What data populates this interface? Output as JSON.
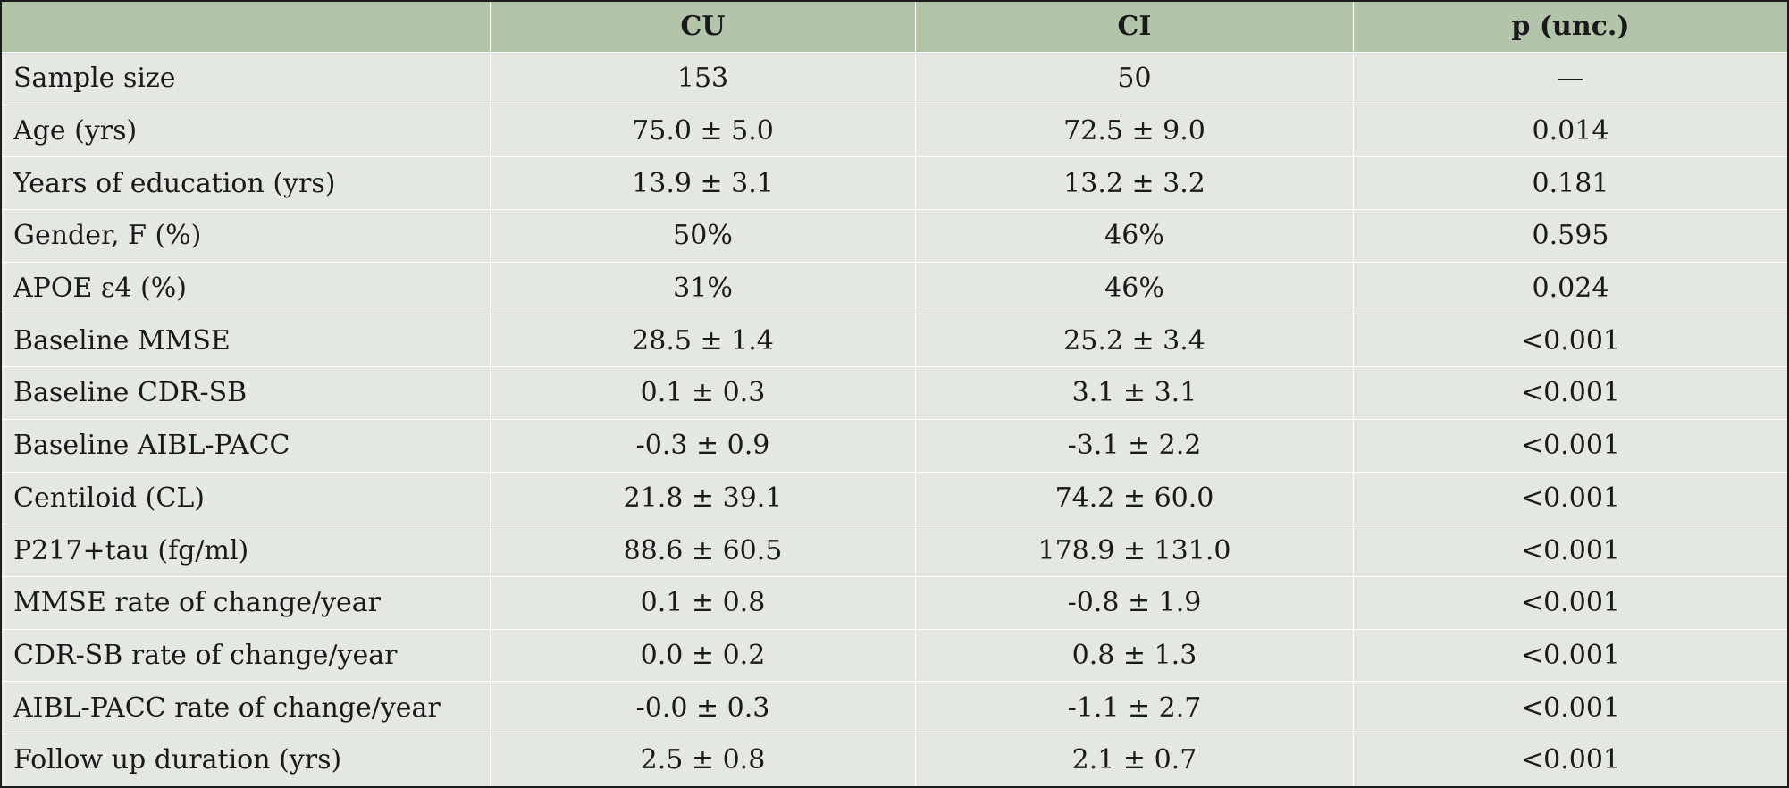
{
  "table": {
    "headers": [
      "",
      "CU",
      "CI",
      "p (unc.)"
    ],
    "rows": [
      [
        "Sample size",
        "153",
        "50",
        "—"
      ],
      [
        "Age (yrs)",
        "75.0 ± 5.0",
        "72.5 ± 9.0",
        "0.014"
      ],
      [
        "Years of education (yrs)",
        "13.9 ± 3.1",
        "13.2 ± 3.2",
        "0.181"
      ],
      [
        "Gender, F (%)",
        "50%",
        "46%",
        "0.595"
      ],
      [
        "APOE ε4 (%)",
        "31%",
        "46%",
        "0.024"
      ],
      [
        "Baseline MMSE",
        "28.5 ± 1.4",
        "25.2 ± 3.4",
        "<0.001"
      ],
      [
        "Baseline CDR-SB",
        "0.1 ± 0.3",
        "3.1 ± 3.1",
        "<0.001"
      ],
      [
        "Baseline AIBL-PACC",
        "-0.3 ± 0.9",
        "-3.1 ± 2.2",
        "<0.001"
      ],
      [
        "Centiloid (CL)",
        "21.8 ± 39.1",
        "74.2 ± 60.0",
        "<0.001"
      ],
      [
        "P217+tau (fg/ml)",
        "88.6 ± 60.5",
        "178.9 ± 131.0",
        "<0.001"
      ],
      [
        "MMSE rate of change/year",
        "0.1 ± 0.8",
        "-0.8 ± 1.9",
        "<0.001"
      ],
      [
        "CDR-SB rate of change/year",
        "0.0 ± 0.2",
        "0.8 ± 1.3",
        "<0.001"
      ],
      [
        "AIBL-PACC rate of change/year",
        "-0.0 ± 0.3",
        "-1.1 ± 2.7",
        "<0.001"
      ],
      [
        "Follow up duration (yrs)",
        "2.5 ± 0.8",
        "2.1 ± 0.7",
        "<0.001"
      ]
    ]
  },
  "colors": {
    "header_background": "#b2c5ab",
    "body_background": "#e3e9e0",
    "cell_border": "#ffffff",
    "outer_border": "#1d1d1d",
    "text": "#1a1a1a"
  }
}
